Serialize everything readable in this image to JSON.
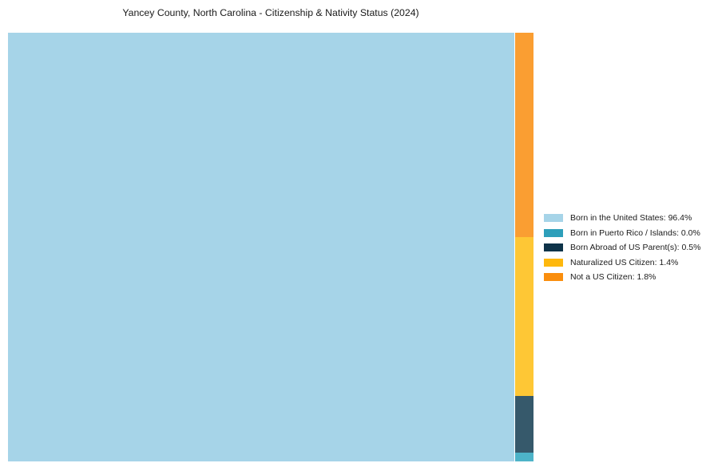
{
  "title": "Yancey County, North Carolina - Citizenship & Nativity Status (2024)",
  "chart_data": {
    "type": "treemap",
    "title": "Yancey County, North Carolina - Citizenship & Nativity Status (2024)",
    "unit": "%",
    "legend_position": "right-center",
    "background_color": "#ffffff",
    "segments": [
      {
        "label": "Born in the United States",
        "value": 96.4,
        "legend_text": "Born in the United States: 96.4%",
        "block_color": "#a6d4e8",
        "legend_color": "#a6d4e8"
      },
      {
        "label": "Born in Puerto Rico / Islands",
        "value": 0.0,
        "legend_text": "Born in Puerto Rico / Islands: 0.0%",
        "block_color": "#4db3c8",
        "legend_color": "#2d9fba"
      },
      {
        "label": "Born Abroad of US Parent(s)",
        "value": 0.5,
        "legend_text": "Born Abroad of US Parent(s): 0.5%",
        "block_color": "#36596b",
        "legend_color": "#0e3349"
      },
      {
        "label": "Naturalized US Citizen",
        "value": 1.4,
        "legend_text": "Naturalized US Citizen: 1.4%",
        "block_color": "#fec735",
        "legend_color": "#feb80d"
      },
      {
        "label": "Not a US Citizen",
        "value": 1.8,
        "legend_text": "Not a US Citizen: 1.8%",
        "block_color": "#fa9e32",
        "legend_color": "#fa8e0d"
      }
    ]
  }
}
